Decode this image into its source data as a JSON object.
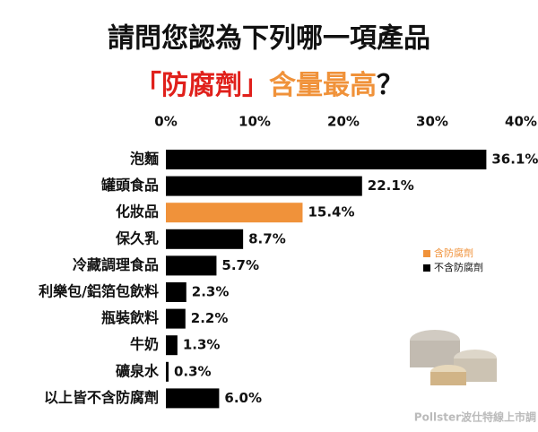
{
  "chart_data": {
    "type": "bar",
    "orientation": "horizontal",
    "title": "請問您認為下列哪一項產品",
    "subtitle_parts": [
      {
        "text": "「防腐劑」",
        "color": "#e0201b"
      },
      {
        "text": "含量最高",
        "color": "#f0923a"
      },
      {
        "text": "？",
        "color": "#111111"
      }
    ],
    "categories": [
      "泡麵",
      "罐頭食品",
      "化妝品",
      "保久乳",
      "冷藏調理食品",
      "利樂包/鋁箔包飲料",
      "瓶裝飲料",
      "牛奶",
      "礦泉水",
      "以上皆不含防腐劑"
    ],
    "series": [
      {
        "name": "含防腐劑",
        "color": "#f0923a",
        "values": [
          null,
          null,
          15.4,
          null,
          null,
          null,
          null,
          null,
          null,
          null
        ],
        "value_labels": [
          null,
          null,
          "15.4%",
          null,
          null,
          null,
          null,
          null,
          null,
          null
        ]
      },
      {
        "name": "不含防腐劑",
        "color": "#000000",
        "values": [
          36.1,
          22.1,
          null,
          8.7,
          5.7,
          2.3,
          2.2,
          1.3,
          0.3,
          6.0
        ],
        "value_labels": [
          "36.1%",
          "22.1%",
          null,
          "8.7%",
          "5.7%",
          "2.3%",
          "2.2%",
          "1.3%",
          "0.3%",
          "6.0%"
        ]
      }
    ],
    "xlim": [
      0,
      40
    ],
    "xticks": [
      {
        "value": 0,
        "label": "0%"
      },
      {
        "value": 10,
        "label": "10%"
      },
      {
        "value": 20,
        "label": "20%"
      },
      {
        "value": 30,
        "label": "30%"
      },
      {
        "value": 40,
        "label": "40%"
      }
    ],
    "grid": false,
    "legend_position": "right",
    "source": "Pollster波仕特線上市調"
  }
}
